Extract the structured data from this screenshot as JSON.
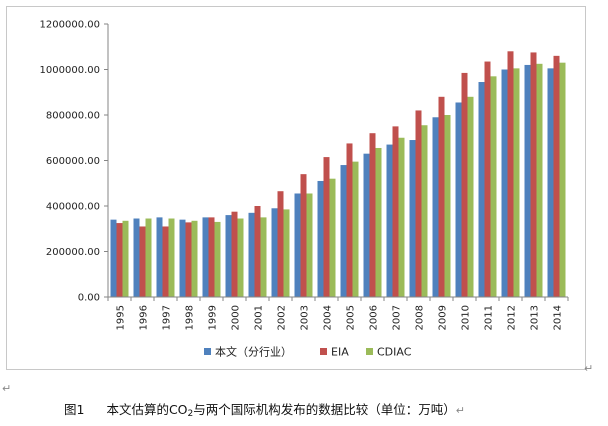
{
  "chart_data": {
    "type": "bar",
    "title": "",
    "xlabel": "",
    "ylabel": "",
    "ylim": [
      0,
      1200000
    ],
    "y_ticks": [
      "0.00",
      "200000.00",
      "400000.00",
      "600000.00",
      "800000.00",
      "1000000.00",
      "1200000.00"
    ],
    "y_tick_values": [
      0,
      200000,
      400000,
      600000,
      800000,
      1000000,
      1200000
    ],
    "categories": [
      "1995",
      "1996",
      "1997",
      "1998",
      "1999",
      "2000",
      "2001",
      "2002",
      "2003",
      "2004",
      "2005",
      "2006",
      "2007",
      "2008",
      "2009",
      "2010",
      "2011",
      "2012",
      "2013",
      "2014"
    ],
    "series": [
      {
        "name": "本文（分行业）",
        "color": "#4F81BD",
        "values": [
          340000,
          345000,
          350000,
          340000,
          350000,
          360000,
          370000,
          390000,
          455000,
          510000,
          580000,
          630000,
          670000,
          690000,
          790000,
          855000,
          945000,
          1000000,
          1020000,
          1005000
        ]
      },
      {
        "name": "EIA",
        "color": "#C0504D",
        "values": [
          325000,
          310000,
          310000,
          328000,
          350000,
          375000,
          400000,
          465000,
          540000,
          615000,
          675000,
          720000,
          750000,
          820000,
          880000,
          985000,
          1035000,
          1080000,
          1075000,
          1060000
        ]
      },
      {
        "name": "CDIAC",
        "color": "#9BBB59",
        "values": [
          335000,
          345000,
          345000,
          335000,
          330000,
          345000,
          350000,
          385000,
          455000,
          520000,
          595000,
          655000,
          700000,
          755000,
          800000,
          880000,
          970000,
          1005000,
          1025000,
          1030000
        ]
      }
    ],
    "legend_position": "bottom",
    "grid": false
  },
  "caption": {
    "prefix": "图1",
    "text_before": "本文估算的CO",
    "subscript": "2",
    "text_after": "与两个国际机构发布的数据比较（单位：万吨）"
  },
  "marks": {
    "return": "↵"
  }
}
